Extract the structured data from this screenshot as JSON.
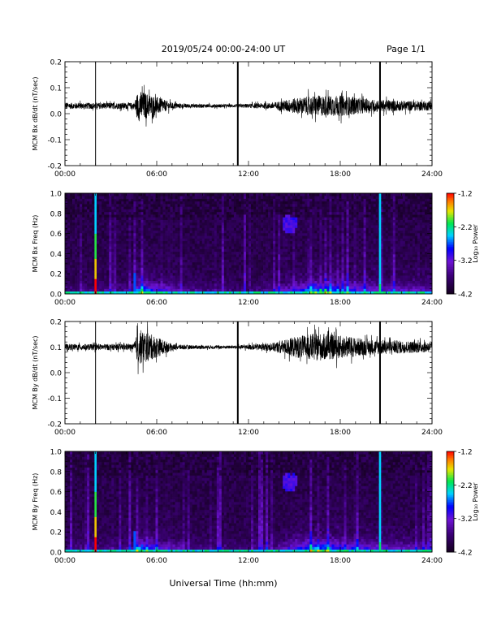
{
  "header": {
    "date_range": "2019/05/24  00:00-24:00 UT",
    "page": "Page 1/1"
  },
  "xlabel": "Universal Time (hh:mm)",
  "chart_data": [
    {
      "type": "line",
      "ylabel": "MCM Bx dB/dt (nT/sec)",
      "xlim": [
        0,
        24
      ],
      "ylim": [
        -0.2,
        0.2
      ],
      "xticks": [
        "00:00",
        "06:00",
        "12:00",
        "18:00",
        "24:00"
      ],
      "yticks": [
        "-0.2",
        "-0.1",
        "0.0",
        "0.1",
        "0.2"
      ],
      "baseline": 0.03,
      "noise_envelope": {
        "x": [
          0,
          4.5,
          4.8,
          5.3,
          6.2,
          7.0,
          8.0,
          11.0,
          13.5,
          15.0,
          16.5,
          18.0,
          20.0,
          22.0,
          24.0
        ],
        "amp": [
          0.012,
          0.012,
          0.06,
          0.05,
          0.03,
          0.012,
          0.008,
          0.006,
          0.012,
          0.03,
          0.04,
          0.04,
          0.025,
          0.02,
          0.018
        ]
      },
      "spikes": [
        2.0,
        11.3,
        20.6
      ],
      "color": "#000000"
    },
    {
      "type": "heatmap",
      "ylabel": "MCM Bx Freq (Hz)",
      "xlim": [
        0,
        24
      ],
      "ylim": [
        0.0,
        1.0
      ],
      "xticks": [
        "00:00",
        "06:00",
        "12:00",
        "18:00",
        "24:00"
      ],
      "yticks": [
        "0.0",
        "0.2",
        "0.4",
        "0.6",
        "0.8",
        "1.0"
      ],
      "colorbar": {
        "label": "Log₁₀ Power",
        "min": -4.2,
        "max": -1.2,
        "ticks": [
          "-1.2",
          "-2.2",
          "-3.2",
          "-4.2"
        ]
      },
      "features": {
        "bright_columns": [
          2.0,
          20.6
        ],
        "onset_column": 4.6,
        "low_freq_band_peak_hours": [
          4.8,
          16.5
        ],
        "isolated_blob": {
          "t": 14.7,
          "f": 0.7
        }
      }
    },
    {
      "type": "line",
      "ylabel": "MCM By dB/dt (nT/sec)",
      "xlim": [
        0,
        24
      ],
      "ylim": [
        -0.2,
        0.2
      ],
      "xticks": [
        "00:00",
        "06:00",
        "12:00",
        "18:00",
        "24:00"
      ],
      "yticks": [
        "-0.2",
        "-0.1",
        "0.0",
        "0.1",
        "0.2"
      ],
      "baseline": 0.1,
      "noise_envelope": {
        "x": [
          0,
          4.5,
          4.8,
          5.3,
          6.2,
          7.0,
          8.0,
          11.0,
          13.5,
          15.0,
          16.5,
          18.0,
          20.0,
          22.0,
          24.0
        ],
        "amp": [
          0.012,
          0.012,
          0.07,
          0.06,
          0.035,
          0.012,
          0.008,
          0.006,
          0.015,
          0.04,
          0.055,
          0.045,
          0.03,
          0.025,
          0.02
        ]
      },
      "spikes": [
        2.0,
        11.3,
        20.6
      ],
      "color": "#000000"
    },
    {
      "type": "heatmap",
      "ylabel": "MCM By Freq (Hz)",
      "xlim": [
        0,
        24
      ],
      "ylim": [
        0.0,
        1.0
      ],
      "xticks": [
        "00:00",
        "06:00",
        "12:00",
        "18:00",
        "24:00"
      ],
      "yticks": [
        "0.0",
        "0.2",
        "0.4",
        "0.6",
        "0.8",
        "1.0"
      ],
      "colorbar": {
        "label": "Log₁₀ Power",
        "min": -4.2,
        "max": -1.2,
        "ticks": [
          "-1.2",
          "-2.2",
          "-3.2",
          "-4.2"
        ]
      },
      "features": {
        "bright_columns": [
          2.0,
          20.6
        ],
        "onset_column": 4.6,
        "low_freq_band_peak_hours": [
          4.8,
          16.5
        ],
        "isolated_blob": {
          "t": 14.7,
          "f": 0.7
        }
      }
    }
  ]
}
